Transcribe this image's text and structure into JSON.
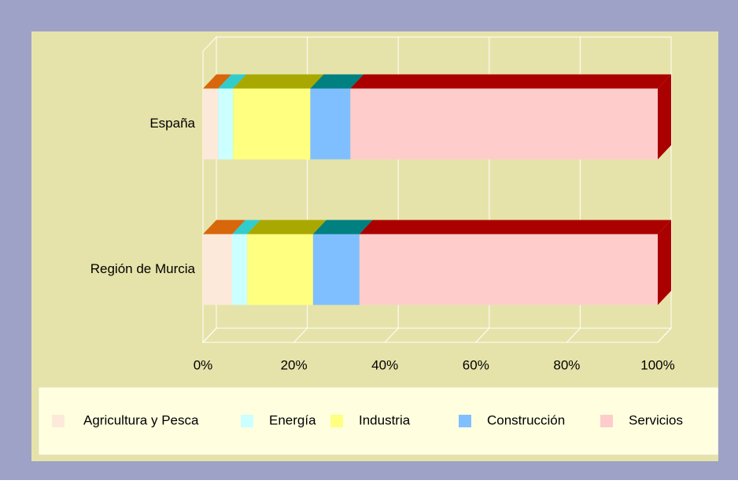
{
  "chart_data": {
    "type": "bar",
    "orientation": "horizontal",
    "stacked": true,
    "categories": [
      "España",
      "Región de Murcia"
    ],
    "series": [
      {
        "name": "Agricultura y Pesca",
        "color": "#fde9d9",
        "top_color": "#d8660a",
        "values": [
          3.3,
          6.4
        ]
      },
      {
        "name": "Energía",
        "color": "#ccffff",
        "top_color": "#33cccc",
        "values": [
          3.3,
          3.3
        ]
      },
      {
        "name": "Industria",
        "color": "#ffff80",
        "top_color": "#a8a800",
        "values": [
          17,
          14.5
        ]
      },
      {
        "name": "Construcción",
        "color": "#80bfff",
        "top_color": "#008080",
        "values": [
          8.8,
          10.2
        ]
      },
      {
        "name": "Servicios",
        "color": "#ffcccc",
        "top_color": "#aa0000",
        "values": [
          67.6,
          65.6
        ]
      }
    ],
    "xlim": [
      0,
      100
    ],
    "xticks": [
      {
        "value": 0,
        "label": "0%"
      },
      {
        "value": 20,
        "label": "20%"
      },
      {
        "value": 40,
        "label": "40%"
      },
      {
        "value": 60,
        "label": "60%"
      },
      {
        "value": 80,
        "label": "80%"
      },
      {
        "value": 100,
        "label": "100%"
      }
    ],
    "grid": true,
    "legend": "bottom"
  }
}
